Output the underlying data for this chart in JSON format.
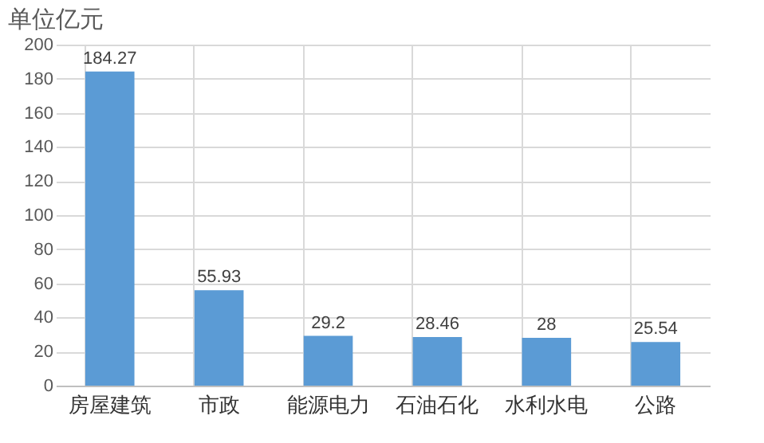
{
  "chart_data": {
    "type": "bar",
    "title": "单位亿元",
    "categories": [
      "房屋建筑",
      "市政",
      "能源电力",
      "石油石化",
      "水利水电",
      "公路"
    ],
    "values": [
      184.27,
      55.93,
      29.2,
      28.46,
      28,
      25.54
    ],
    "color": "#5b9bd5",
    "ylim": [
      0,
      200
    ],
    "yticks": [
      0,
      20,
      40,
      60,
      80,
      100,
      120,
      140,
      160,
      180,
      200
    ],
    "grid": true,
    "data_labels": true
  }
}
